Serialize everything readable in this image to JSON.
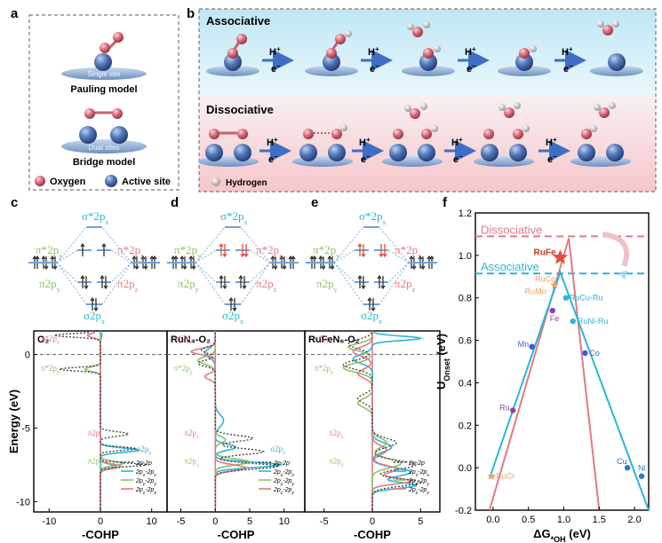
{
  "panel_labels": {
    "a": "a",
    "b": "b",
    "c": "c",
    "d": "d",
    "e": "e",
    "f": "f"
  },
  "panel_a": {
    "single_site": "Single site",
    "pauling": "Pauling model",
    "dual_sites": "Dual sites",
    "bridge": "Bridge model",
    "legend_oxygen": "Oxygen",
    "legend_active": "Active site"
  },
  "panel_b": {
    "associative": "Associative",
    "dissociative": "Dissociative",
    "h_plus": "H",
    "plus": "+",
    "e_minus": "e",
    "minus": "−",
    "legend_hydrogen": "Hydrogen"
  },
  "mo_diagram": {
    "sigma_star": "σ*2p",
    "pi_star": "π*2p",
    "pi": "π2p",
    "sigma": "σ2p",
    "sub_x": "x",
    "sub_y": "y",
    "sub_z": "z"
  },
  "cohp": {
    "panels": [
      {
        "title": "O₂"
      },
      {
        "title": "RuN₄-O₂"
      },
      {
        "title": "RuFeN₆-O₂"
      }
    ],
    "ylabel": "Energy (eV)",
    "xlabel": "-COHP",
    "yticks": [
      "0",
      "-5",
      "-10"
    ],
    "xticks_1": [
      "-10",
      "0",
      "10"
    ],
    "xticks_2": [
      "-5",
      "0",
      "5",
      "10"
    ],
    "xticks_3": [
      "-5",
      "0",
      "5"
    ],
    "legend": [
      "2p-2p",
      "2pₓ-2pₓ",
      "2pᵧ-2pᵧ",
      "2p_z-2p_z"
    ],
    "legend_main": "2p",
    "legend_sub_x": "x",
    "legend_sub_y": "y",
    "legend_sub_z": "z",
    "peak_pi_star": "π*2p",
    "peak_pi": "π2p",
    "peak_sigma": "σ2p",
    "colors": {
      "black": "#444444",
      "cyan": "#2bb5d6",
      "green": "#8cc267",
      "red": "#e27a84"
    }
  },
  "chart_data": {
    "type": "line",
    "xlabel": "ΔG*OH (eV)",
    "ylabel": "U_Onset (eV)",
    "xlim": [
      -0.25,
      2.2
    ],
    "ylim": [
      -0.2,
      1.2
    ],
    "xticks": [
      "0.0",
      "0.5",
      "1.0",
      "1.5",
      "2.0"
    ],
    "yticks": [
      "-0.2",
      "0.0",
      "0.2",
      "0.4",
      "0.6",
      "0.8",
      "1.0",
      "1.2"
    ],
    "series": [
      {
        "name": "Dissociative",
        "color": "#e27a84",
        "x": [
          -0.05,
          1.07,
          1.5
        ],
        "y": [
          -0.2,
          1.08,
          -0.2
        ]
      },
      {
        "name": "Associative",
        "color": "#2bb5d6",
        "x": [
          -0.05,
          0.95,
          2.2
        ],
        "y": [
          -0.05,
          0.92,
          -0.2
        ]
      }
    ],
    "dissociative_line_y": 1.09,
    "associative_line_y": 0.915,
    "dissociative_label": "Dissociative",
    "associative_label": "Associative",
    "points": [
      {
        "label": "RuFe",
        "x": 0.95,
        "y": 0.99,
        "color": "#e84b3c",
        "marker": "star"
      },
      {
        "label": "RuCo",
        "x": 0.87,
        "y": 0.86,
        "color": "#f0a060",
        "marker": "star"
      },
      {
        "label": "RuMn",
        "x": 0.75,
        "y": 0.8,
        "color": "#f0a060",
        "marker": "none"
      },
      {
        "label": "Fe",
        "x": 0.84,
        "y": 0.74,
        "color": "#8e44ad",
        "marker": "dot"
      },
      {
        "label": "RuCu-Ru",
        "x": 1.03,
        "y": 0.8,
        "color": "#2bb5d6",
        "marker": "dot"
      },
      {
        "label": "RuNi-Ru",
        "x": 1.13,
        "y": 0.69,
        "color": "#2bb5d6",
        "marker": "dot"
      },
      {
        "label": "Mn",
        "x": 0.55,
        "y": 0.57,
        "color": "#3b5bdb",
        "marker": "dot"
      },
      {
        "label": "Co",
        "x": 1.3,
        "y": 0.54,
        "color": "#3b5bdb",
        "marker": "dot"
      },
      {
        "label": "Ru",
        "x": 0.28,
        "y": 0.27,
        "color": "#8e44ad",
        "marker": "dot"
      },
      {
        "label": "RuCr",
        "x": -0.02,
        "y": -0.04,
        "color": "#f0a060",
        "marker": "star"
      },
      {
        "label": "Cu",
        "x": 1.9,
        "y": 0.0,
        "color": "#2b7bbd",
        "marker": "dot"
      },
      {
        "label": "Ni",
        "x": 2.1,
        "y": -0.04,
        "color": "#2b7bbd",
        "marker": "dot"
      }
    ]
  }
}
